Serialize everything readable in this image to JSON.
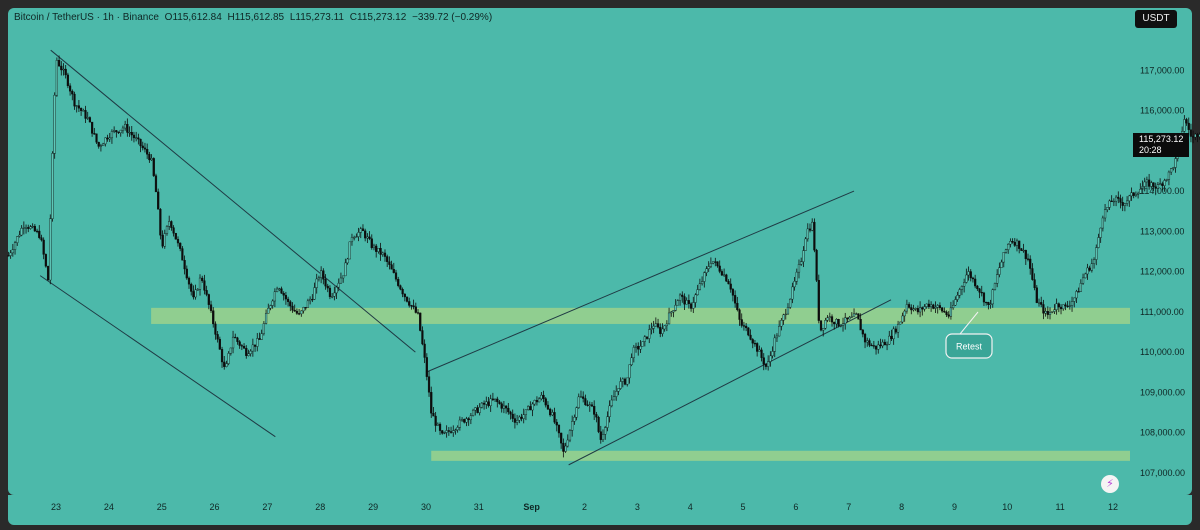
{
  "legend": {
    "symbol": "Bitcoin / TetherUS · 1h · Binance",
    "open": "O115,612.84",
    "high": "H115,612.85",
    "low": "L115,273.11",
    "close": "C115,273.12",
    "change": "−339.72 (−0.29%)"
  },
  "currency_button": "USDT",
  "last_price": {
    "value": "115,273.12",
    "countdown": "20:28"
  },
  "annotation": {
    "text": "Retest"
  },
  "pivot_icon": "lightning-icon",
  "colors": {
    "background": "#4cb9aa",
    "candle": "#0d0d0d",
    "zone": "#c9e07a",
    "trendline": "#1f3a44"
  },
  "chart_data": {
    "type": "candlestick",
    "symbol": "BTCUSDT",
    "timeframe": "1h",
    "x_tick_labels": [
      "23",
      "24",
      "25",
      "26",
      "27",
      "28",
      "29",
      "30",
      "31",
      "Sep",
      "2",
      "3",
      "4",
      "5",
      "6",
      "7",
      "8",
      "9",
      "10",
      "11",
      "12"
    ],
    "y_tick_labels": [
      "107,000.00",
      "108,000.00",
      "109,000.00",
      "110,000.00",
      "111,000.00",
      "112,000.00",
      "113,000.00",
      "114,000.00",
      "115,000.00",
      "116,000.00",
      "117,000.00"
    ],
    "ylim": [
      106700,
      118200
    ],
    "price_path": [
      [
        22.1,
        112400
      ],
      [
        22.4,
        113200
      ],
      [
        22.7,
        112900
      ],
      [
        22.85,
        111800
      ],
      [
        23.0,
        117300
      ],
      [
        23.2,
        116800
      ],
      [
        23.35,
        116200
      ],
      [
        23.6,
        115800
      ],
      [
        23.8,
        115100
      ],
      [
        24.0,
        115400
      ],
      [
        24.3,
        115600
      ],
      [
        24.5,
        115300
      ],
      [
        24.8,
        114800
      ],
      [
        24.9,
        113900
      ],
      [
        25.0,
        112600
      ],
      [
        25.15,
        113300
      ],
      [
        25.4,
        112300
      ],
      [
        25.6,
        111300
      ],
      [
        25.75,
        111900
      ],
      [
        26.0,
        110600
      ],
      [
        26.2,
        109500
      ],
      [
        26.35,
        110400
      ],
      [
        26.6,
        110000
      ],
      [
        26.85,
        110300
      ],
      [
        27.0,
        111000
      ],
      [
        27.2,
        111700
      ],
      [
        27.4,
        111200
      ],
      [
        27.6,
        110900
      ],
      [
        27.85,
        111400
      ],
      [
        28.0,
        112000
      ],
      [
        28.2,
        111400
      ],
      [
        28.45,
        112000
      ],
      [
        28.6,
        112900
      ],
      [
        28.8,
        113000
      ],
      [
        29.0,
        112600
      ],
      [
        29.2,
        112400
      ],
      [
        29.4,
        111900
      ],
      [
        29.6,
        111400
      ],
      [
        29.85,
        110900
      ],
      [
        30.0,
        109600
      ],
      [
        30.1,
        108500
      ],
      [
        30.3,
        107900
      ],
      [
        30.5,
        108100
      ],
      [
        30.7,
        108300
      ],
      [
        30.9,
        108500
      ],
      [
        31.1,
        108700
      ],
      [
        31.3,
        108800
      ],
      [
        31.5,
        108600
      ],
      [
        31.7,
        108300
      ],
      [
        31.9,
        108500
      ],
      [
        32.0,
        108700
      ],
      [
        32.2,
        108900
      ],
      [
        32.4,
        108400
      ],
      [
        32.5,
        108000
      ],
      [
        32.6,
        107500
      ],
      [
        32.75,
        108200
      ],
      [
        32.9,
        108900
      ],
      [
        33.0,
        108800
      ],
      [
        33.2,
        108500
      ],
      [
        33.3,
        107800
      ],
      [
        33.5,
        108700
      ],
      [
        33.65,
        109200
      ],
      [
        33.8,
        109300
      ],
      [
        33.9,
        110000
      ],
      [
        34.1,
        110200
      ],
      [
        34.3,
        110700
      ],
      [
        34.45,
        110500
      ],
      [
        34.6,
        110900
      ],
      [
        34.8,
        111400
      ],
      [
        35.0,
        111100
      ],
      [
        35.2,
        111700
      ],
      [
        35.4,
        112300
      ],
      [
        35.6,
        112000
      ],
      [
        35.75,
        111700
      ],
      [
        35.95,
        110700
      ],
      [
        36.1,
        110500
      ],
      [
        36.3,
        110000
      ],
      [
        36.45,
        109600
      ],
      [
        36.6,
        110300
      ],
      [
        36.8,
        111000
      ],
      [
        36.95,
        111600
      ],
      [
        37.1,
        112300
      ],
      [
        37.2,
        113000
      ],
      [
        37.32,
        113200
      ],
      [
        37.45,
        110500
      ],
      [
        37.6,
        110900
      ],
      [
        37.8,
        110700
      ],
      [
        38.0,
        110800
      ],
      [
        38.15,
        110900
      ],
      [
        38.3,
        110300
      ],
      [
        38.5,
        110100
      ],
      [
        38.75,
        110300
      ],
      [
        38.95,
        110700
      ],
      [
        39.1,
        111200
      ],
      [
        39.3,
        111000
      ],
      [
        39.5,
        111200
      ],
      [
        39.7,
        111100
      ],
      [
        39.9,
        110900
      ],
      [
        40.05,
        111400
      ],
      [
        40.25,
        112000
      ],
      [
        40.45,
        111600
      ],
      [
        40.65,
        111100
      ],
      [
        40.85,
        112100
      ],
      [
        41.05,
        112800
      ],
      [
        41.2,
        112700
      ],
      [
        41.4,
        112300
      ],
      [
        41.55,
        111300
      ],
      [
        41.75,
        110900
      ],
      [
        41.95,
        111200
      ],
      [
        42.1,
        111100
      ],
      [
        42.3,
        111400
      ],
      [
        42.45,
        111900
      ],
      [
        42.65,
        112300
      ],
      [
        42.8,
        113400
      ],
      [
        43.0,
        113800
      ],
      [
        43.2,
        113700
      ],
      [
        43.45,
        114000
      ],
      [
        43.65,
        114200
      ],
      [
        43.85,
        114100
      ],
      [
        44.05,
        114400
      ],
      [
        44.2,
        114800
      ],
      [
        44.35,
        115800
      ],
      [
        44.5,
        115300
      ],
      [
        44.65,
        115500
      ],
      [
        44.75,
        115273
      ]
    ],
    "bands": [
      {
        "from": 110700,
        "to": 111100,
        "x_start": 24.8,
        "x_end": 43.8
      },
      {
        "from": 107300,
        "to": 107550,
        "x_start": 30.1,
        "x_end": 43.8
      }
    ],
    "trend_lines": [
      {
        "from": [
          22.9,
          117500
        ],
        "to": [
          29.8,
          110000
        ]
      },
      {
        "from": [
          22.7,
          111900
        ],
        "to": [
          27.15,
          107900
        ]
      },
      {
        "from": [
          30.0,
          109500
        ],
        "to": [
          38.1,
          114000
        ]
      },
      {
        "from": [
          32.7,
          107200
        ],
        "to": [
          38.8,
          111300
        ]
      }
    ],
    "grid": false,
    "legend_position": "top-left"
  }
}
